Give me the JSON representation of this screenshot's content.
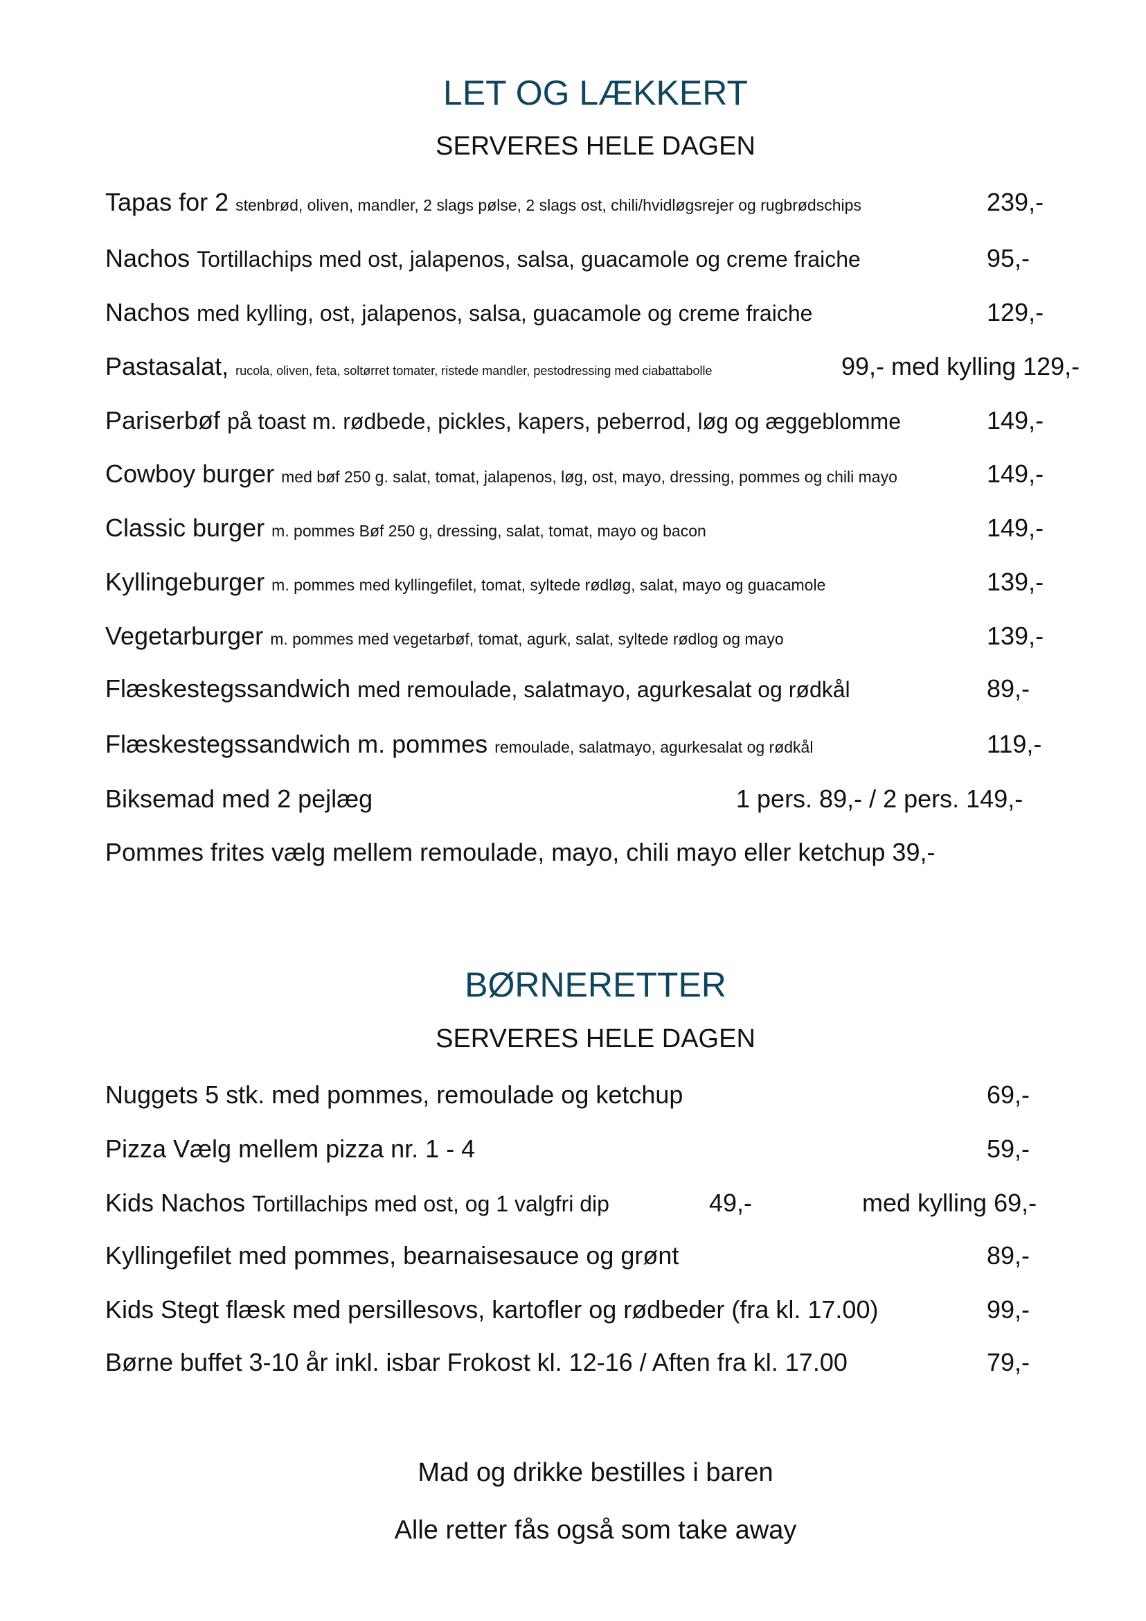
{
  "section1": {
    "title": "LET OG LÆKKERT",
    "subtitle": "SERVERES HELE DAGEN",
    "items": [
      {
        "name": "Tapas for 2",
        "desc": "stenbrød, oliven, mandler, 2 slags pølse, 2 slags ost, chili/hvidløgsrejer og rugbrødschips",
        "price": "239,-"
      },
      {
        "name": "Nachos",
        "desc": "Tortillachips med ost, jalapenos, salsa, guacamole og creme fraiche",
        "price": "95,-"
      },
      {
        "name": "Nachos",
        "desc": "med kylling, ost, jalapenos, salsa, guacamole og creme fraiche",
        "price": "129,-"
      },
      {
        "name": "Pastasalat,",
        "desc": "rucola, oliven, feta, soltørret tomater, ristede mandler, pestodressing med ciabattabolle",
        "price": "99,-  med kylling 129,-"
      },
      {
        "name": "Pariserbøf",
        "desc": "på toast m. rødbede, pickles, kapers, peberrod, løg og æggeblomme",
        "price": "149,-"
      },
      {
        "name": "Cowboy burger",
        "desc": "med bøf 250 g. salat, tomat, jalapenos, løg, ost, mayo, dressing, pommes og chili mayo",
        "price": "149,-"
      },
      {
        "name": "Classic burger",
        "desc": "m. pommes Bøf 250 g, dressing, salat, tomat, mayo og bacon",
        "price": "149,-"
      },
      {
        "name": "Kyllingeburger",
        "desc": "m. pommes med kyllingefilet, tomat, syltede rødløg, salat, mayo og guacamole",
        "price": "139,-"
      },
      {
        "name": "Vegetarburger",
        "desc": "m. pommes med vegetarbøf, tomat, agurk, salat, syltede rødlog og mayo",
        "price": "139,-"
      },
      {
        "name": "Flæskestegssandwich",
        "desc": "med remoulade, salatmayo, agurkesalat og rødkål",
        "price": "89,-"
      },
      {
        "name": "Flæskestegssandwich m. pommes",
        "desc": "remoulade, salatmayo, agurkesalat og rødkål",
        "price": "119,-"
      },
      {
        "name": "Biksemad med 2 pejlæg",
        "desc": "",
        "price": "1 pers. 89,- / 2 pers. 149,-"
      },
      {
        "name": "Pommes frites vælg mellem remoulade, mayo, chili mayo eller ketchup",
        "desc": "",
        "price": "39,-"
      }
    ]
  },
  "section2": {
    "title": "BØRNERETTER",
    "subtitle": "SERVERES HELE DAGEN",
    "items": [
      {
        "name": "Nuggets 5 stk. med pommes, remoulade og ketchup",
        "desc": "",
        "price": "69,-"
      },
      {
        "name": "Pizza Vælg mellem pizza nr. 1 - 4",
        "desc": "",
        "price": "59,-"
      },
      {
        "name": "Kids Nachos",
        "desc": "Tortillachips med ost, og 1 valgfri dip",
        "price": "49,-",
        "price2": "med kylling 69,-"
      },
      {
        "name": "Kyllingefilet med pommes, bearnaisesauce og grønt",
        "desc": "",
        "price": "89,-"
      },
      {
        "name": "Kids Stegt flæsk med persillesovs, kartofler og rødbeder (fra kl. 17.00)",
        "desc": "",
        "price": "99,-"
      },
      {
        "name": "Børne buffet 3-10 år inkl. isbar Frokost kl. 12-16 / Aften fra kl. 17.00",
        "desc": "",
        "price": "79,-"
      }
    ]
  },
  "footer": [
    "Mad og drikke bestilles i baren",
    "Alle retter fås også som take away"
  ],
  "colors": {
    "heading": "#10455e",
    "text": "#111111"
  }
}
